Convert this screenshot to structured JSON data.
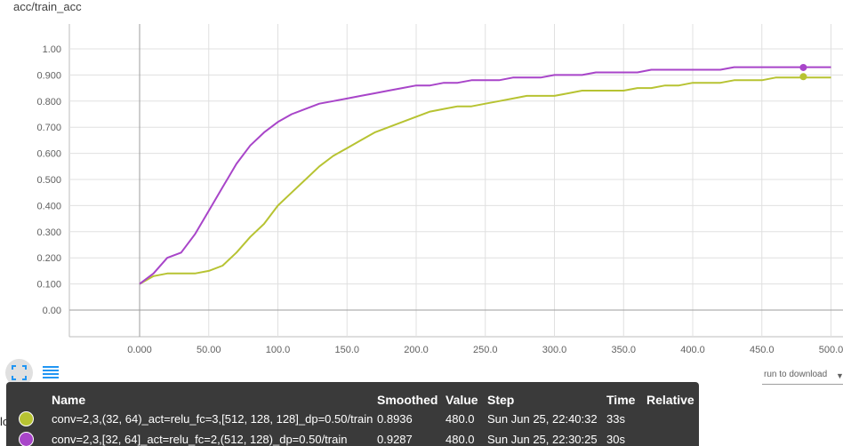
{
  "chart_title": "acc/train_acc",
  "chart_data": {
    "type": "line",
    "title": "acc/train_acc",
    "xlabel": "",
    "ylabel": "",
    "xlim": [
      -50,
      510
    ],
    "ylim": [
      -0.1,
      1.1
    ],
    "grid": true,
    "x_ticks": [
      "0.000",
      "50.00",
      "100.0",
      "150.0",
      "200.0",
      "250.0",
      "300.0",
      "350.0",
      "400.0",
      "450.0",
      "500.0"
    ],
    "x_tick_values": [
      0,
      50,
      100,
      150,
      200,
      250,
      300,
      350,
      400,
      450,
      500
    ],
    "y_ticks": [
      "0.00",
      "0.100",
      "0.200",
      "0.300",
      "0.400",
      "0.500",
      "0.600",
      "0.700",
      "0.800",
      "0.900",
      "1.00"
    ],
    "y_tick_values": [
      0,
      0.1,
      0.2,
      0.3,
      0.4,
      0.5,
      0.6,
      0.7,
      0.8,
      0.9,
      1.0
    ],
    "series": [
      {
        "name": "conv=2,3,(32, 64)_act=relu_fc=3,[512, 128, 128]_dp=0.50/train",
        "color": "#b7c332",
        "x": [
          0,
          10,
          20,
          30,
          40,
          50,
          60,
          70,
          80,
          90,
          100,
          110,
          120,
          130,
          140,
          150,
          160,
          170,
          180,
          190,
          200,
          210,
          220,
          230,
          240,
          250,
          260,
          270,
          280,
          290,
          300,
          310,
          320,
          330,
          340,
          350,
          360,
          370,
          380,
          390,
          400,
          410,
          420,
          430,
          440,
          450,
          460,
          470,
          480,
          490,
          500
        ],
        "y": [
          0.1,
          0.13,
          0.14,
          0.14,
          0.14,
          0.15,
          0.17,
          0.22,
          0.28,
          0.33,
          0.4,
          0.45,
          0.5,
          0.55,
          0.59,
          0.62,
          0.65,
          0.68,
          0.7,
          0.72,
          0.74,
          0.76,
          0.77,
          0.78,
          0.78,
          0.79,
          0.8,
          0.81,
          0.82,
          0.82,
          0.82,
          0.83,
          0.84,
          0.84,
          0.84,
          0.84,
          0.85,
          0.85,
          0.86,
          0.86,
          0.87,
          0.87,
          0.87,
          0.88,
          0.88,
          0.88,
          0.89,
          0.89,
          0.89,
          0.89,
          0.89
        ],
        "marker_x": 480,
        "marker_y": 0.8936
      },
      {
        "name": "conv=2,3,[32, 64]_act=relu_fc=2,(512, 128)_dp=0.50/train",
        "color": "#a845c9",
        "x": [
          0,
          10,
          20,
          30,
          40,
          50,
          60,
          70,
          80,
          90,
          100,
          110,
          120,
          130,
          140,
          150,
          160,
          170,
          180,
          190,
          200,
          210,
          220,
          230,
          240,
          250,
          260,
          270,
          280,
          290,
          300,
          310,
          320,
          330,
          340,
          350,
          360,
          370,
          380,
          390,
          400,
          410,
          420,
          430,
          440,
          450,
          460,
          470,
          480,
          490,
          500
        ],
        "y": [
          0.1,
          0.14,
          0.2,
          0.22,
          0.29,
          0.38,
          0.47,
          0.56,
          0.63,
          0.68,
          0.72,
          0.75,
          0.77,
          0.79,
          0.8,
          0.81,
          0.82,
          0.83,
          0.84,
          0.85,
          0.86,
          0.86,
          0.87,
          0.87,
          0.88,
          0.88,
          0.88,
          0.89,
          0.89,
          0.89,
          0.9,
          0.9,
          0.9,
          0.91,
          0.91,
          0.91,
          0.91,
          0.92,
          0.92,
          0.92,
          0.92,
          0.92,
          0.92,
          0.93,
          0.93,
          0.93,
          0.93,
          0.93,
          0.93,
          0.93,
          0.93
        ],
        "marker_x": 480,
        "marker_y": 0.9287
      }
    ]
  },
  "toolbar": {
    "fit_icon": "fit-domain-icon",
    "list_icon": "data-selection-icon"
  },
  "download": {
    "label": "run to download",
    "caret": "▼"
  },
  "side_fragment": "los",
  "tooltip": {
    "headers": {
      "name": "Name",
      "smoothed": "Smoothed",
      "value": "Value",
      "step": "Step",
      "time": "Time",
      "relative": "Relative"
    },
    "rows": [
      {
        "color": "#b7c332",
        "name": "conv=2,3,(32, 64)_act=relu_fc=3,[512, 128, 128]_dp=0.50/train",
        "smoothed": "0.8936",
        "value": "480.0",
        "step": "Sun Jun 25, 22:40:32",
        "time": "33s",
        "relative": ""
      },
      {
        "color": "#a845c9",
        "name": "conv=2,3,[32, 64]_act=relu_fc=2,(512, 128)_dp=0.50/train",
        "smoothed": "0.9287",
        "value": "480.0",
        "step": "Sun Jun 25, 22:30:25",
        "time": "30s",
        "relative": ""
      }
    ]
  }
}
